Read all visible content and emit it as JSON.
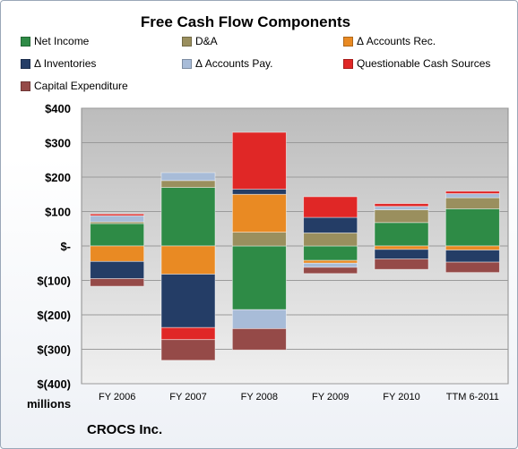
{
  "title": "Free Cash Flow Components",
  "footer": "CROCS Inc.",
  "legend": [
    {
      "label": "Net Income",
      "color": "#2e8b46"
    },
    {
      "label": "D&A",
      "color": "#9a8f5e"
    },
    {
      "label": "Δ Accounts Rec.",
      "color": "#e98a23"
    },
    {
      "label": "Δ Inventories",
      "color": "#243d66"
    },
    {
      "label": "Δ Accounts Pay.",
      "color": "#a8bcd8"
    },
    {
      "label": "Questionable Cash Sources",
      "color": "#e02726"
    },
    {
      "label": "Capital Expenditure",
      "color": "#954a48"
    }
  ],
  "chart_data": {
    "type": "bar",
    "stacked": true,
    "title": "Free Cash Flow Components",
    "ylabel": "millions",
    "ylim": [
      -400,
      400
    ],
    "yticks": [
      400,
      300,
      200,
      100,
      0,
      -100,
      -200,
      -300,
      -400
    ],
    "ytick_labels": [
      "$400",
      "$300",
      "$200",
      "$100",
      "$-",
      "$(100)",
      "$(200)",
      "$(300)",
      "$(400)"
    ],
    "categories": [
      "FY 2006",
      "FY 2007",
      "FY 2008",
      "FY 2009",
      "FY 2010",
      "TTM 6-2011"
    ],
    "series": [
      {
        "name": "Net Income",
        "color": "#2e8b46",
        "values": [
          65,
          170,
          -185,
          -42,
          68,
          108
        ]
      },
      {
        "name": "D&A",
        "color": "#9a8f5e",
        "values": [
          5,
          20,
          40,
          38,
          37,
          32
        ]
      },
      {
        "name": "Δ Accounts Rec.",
        "color": "#e98a23",
        "values": [
          -45,
          -82,
          110,
          -8,
          -10,
          -12
        ]
      },
      {
        "name": "Δ Inventories",
        "color": "#243d66",
        "values": [
          -50,
          -155,
          15,
          45,
          -28,
          -35
        ]
      },
      {
        "name": "Δ Accounts Pay.",
        "color": "#a8bcd8",
        "values": [
          18,
          23,
          -55,
          -12,
          10,
          12
        ]
      },
      {
        "name": "Questionable Cash Sources",
        "color": "#e02726",
        "values": [
          5,
          -35,
          165,
          60,
          8,
          7
        ]
      },
      {
        "name": "Capital Expenditure",
        "color": "#954a48",
        "values": [
          -22,
          -60,
          -62,
          -18,
          -30,
          -30
        ]
      }
    ],
    "grid": true,
    "legend_position": "top"
  }
}
